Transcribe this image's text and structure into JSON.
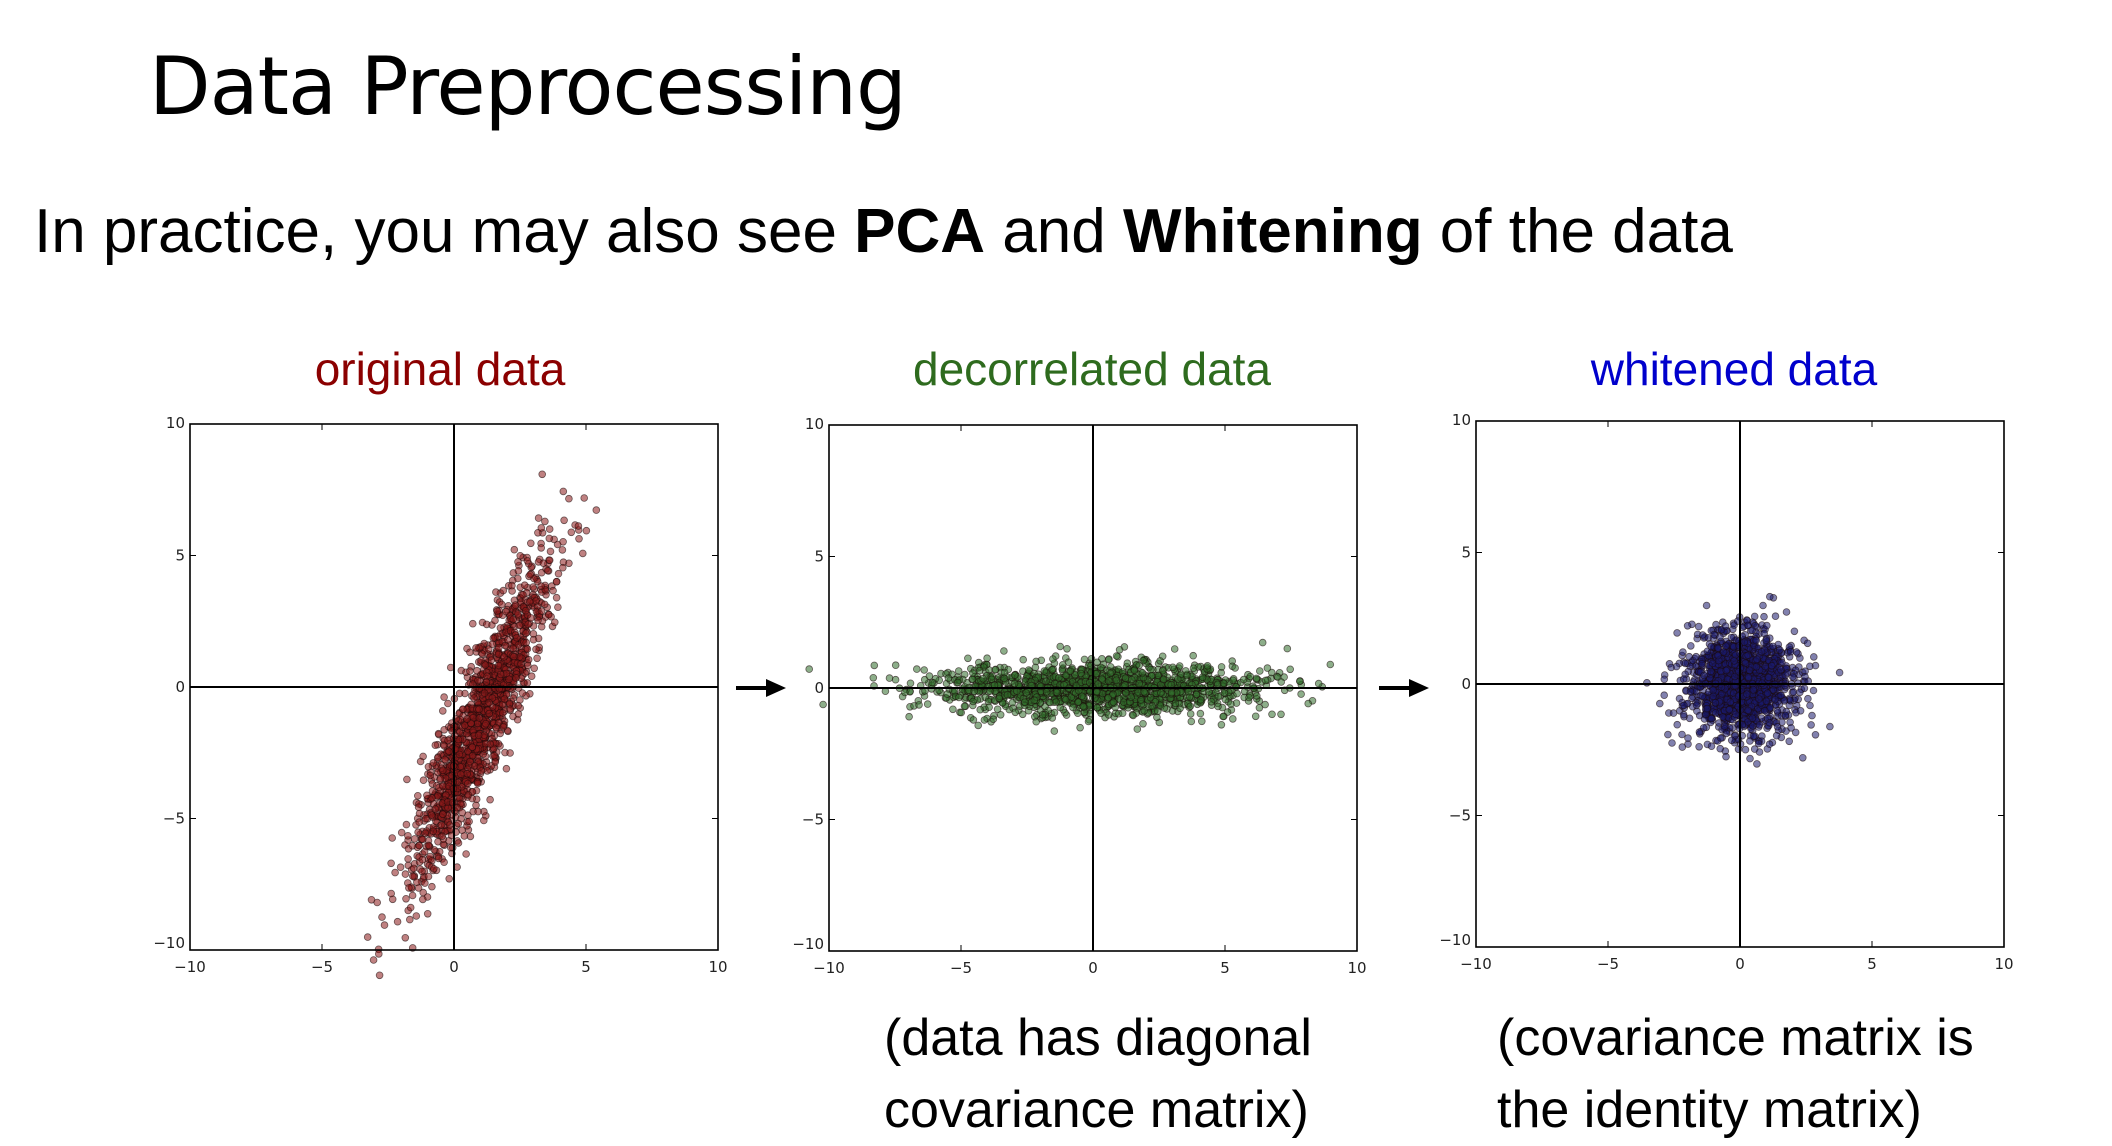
{
  "slide": {
    "title": "Data Preprocessing",
    "subtitle": {
      "pre": "In practice, you may also see ",
      "bold1": "PCA",
      "mid": " and ",
      "bold2": "Whitening",
      "post": " of the data"
    },
    "captions": {
      "decorrelated": [
        "(data has diagonal",
        "covariance matrix)"
      ],
      "whitened": [
        "(covariance matrix is",
        "the identity matrix)"
      ]
    }
  },
  "chart_data": [
    {
      "type": "scatter",
      "title": "original data",
      "title_color": "#8b0000",
      "point_color": "#8b1a1a",
      "xlim": [
        -10,
        10
      ],
      "ylim": [
        -10,
        10
      ],
      "xticks": [
        "−10",
        "−5",
        "0",
        "5",
        "10"
      ],
      "yticks": [
        "−10",
        "−5",
        "0",
        "5",
        "10"
      ],
      "distribution": {
        "n": 1500,
        "mean": [
          1.0,
          -1.2
        ],
        "std": [
          1.3,
          3.0
        ],
        "correlation": 0.9
      },
      "seed": 7
    },
    {
      "type": "scatter",
      "title": "decorrelated data",
      "title_color": "#2e6b1e",
      "point_color": "#2f6b2a",
      "xlim": [
        -10,
        10
      ],
      "ylim": [
        -10,
        10
      ],
      "xticks": [
        "−10",
        "−5",
        "0",
        "5",
        "10"
      ],
      "yticks": [
        "−10",
        "−5",
        "0",
        "5",
        "10"
      ],
      "distribution": {
        "n": 1500,
        "mean": [
          0,
          0
        ],
        "std": [
          3.1,
          0.5
        ],
        "correlation": 0
      },
      "seed": 11
    },
    {
      "type": "scatter",
      "title": "whitened data",
      "title_color": "#0000cc",
      "point_color": "#1a1a6b",
      "xlim": [
        -10,
        10
      ],
      "ylim": [
        -10,
        10
      ],
      "xticks": [
        "−10",
        "−5",
        "0",
        "5",
        "10"
      ],
      "yticks": [
        "−10",
        "−5",
        "0",
        "5",
        "10"
      ],
      "distribution": {
        "n": 1500,
        "mean": [
          0,
          0
        ],
        "std": [
          1.0,
          1.0
        ],
        "correlation": 0
      },
      "seed": 23
    }
  ],
  "icons": {
    "arrow": "right-arrow-icon"
  }
}
